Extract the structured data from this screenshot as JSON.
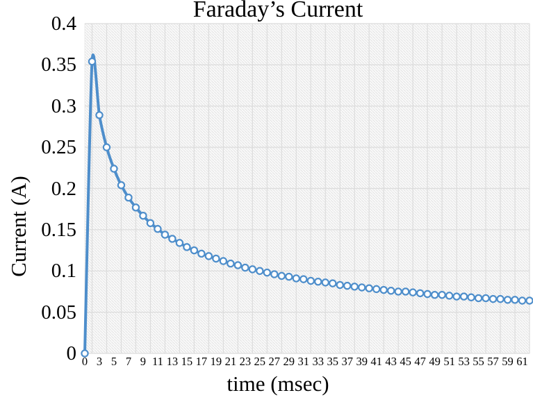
{
  "chart_data": {
    "type": "line",
    "title": "Faraday’s Current",
    "xlabel": "time (msec)",
    "ylabel": "Current (A)",
    "x_msec": [
      0,
      2,
      3,
      4,
      5,
      6,
      7,
      8,
      9,
      10,
      11,
      12,
      13,
      14,
      15,
      16,
      17,
      18,
      19,
      20,
      21,
      22,
      23,
      24,
      25,
      26,
      27,
      28,
      29,
      30,
      31,
      32,
      33,
      34,
      35,
      36,
      37,
      38,
      39,
      40,
      41,
      42,
      43,
      44,
      45,
      46,
      47,
      48,
      49,
      50,
      51,
      52,
      53,
      54,
      55,
      56,
      57,
      58,
      59,
      60,
      61,
      62
    ],
    "current_A": [
      0,
      0.354,
      0.289,
      0.25,
      0.224,
      0.204,
      0.189,
      0.177,
      0.167,
      0.158,
      0.151,
      0.144,
      0.139,
      0.134,
      0.129,
      0.125,
      0.121,
      0.118,
      0.115,
      0.112,
      0.109,
      0.107,
      0.104,
      0.102,
      0.1,
      0.098,
      0.096,
      0.094,
      0.093,
      0.091,
      0.09,
      0.088,
      0.087,
      0.086,
      0.085,
      0.083,
      0.082,
      0.081,
      0.08,
      0.079,
      0.078,
      0.077,
      0.076,
      0.075,
      0.075,
      0.074,
      0.073,
      0.072,
      0.071,
      0.071,
      0.07,
      0.069,
      0.069,
      0.068,
      0.067,
      0.067,
      0.066,
      0.066,
      0.065,
      0.065,
      0.064,
      0.064
    ],
    "ylim": [
      0,
      0.4
    ],
    "y_tick_values": [
      0,
      0.05,
      0.1,
      0.15,
      0.2,
      0.25,
      0.3,
      0.35,
      0.4
    ],
    "y_tick_labels": [
      "0",
      "0.05",
      "0.1",
      "0.15",
      "0.2",
      "0.25",
      "0.3",
      "0.35",
      "0.4"
    ],
    "x_tick_labels": [
      "0",
      "3",
      "5",
      "7",
      "9",
      "11",
      "13",
      "15",
      "17",
      "19",
      "21",
      "23",
      "25",
      "27",
      "29",
      "31",
      "33",
      "35",
      "37",
      "39",
      "41",
      "43",
      "45",
      "47",
      "49",
      "51",
      "53",
      "55",
      "57",
      "59",
      "61"
    ],
    "grid": true,
    "legend": "none",
    "line_color": "#4E8ECB",
    "marker_style": "open-circle-white-fill",
    "plot_area_fill": "diagonal-hatch-light-gray",
    "gridline_color": "#dcdcdc"
  }
}
